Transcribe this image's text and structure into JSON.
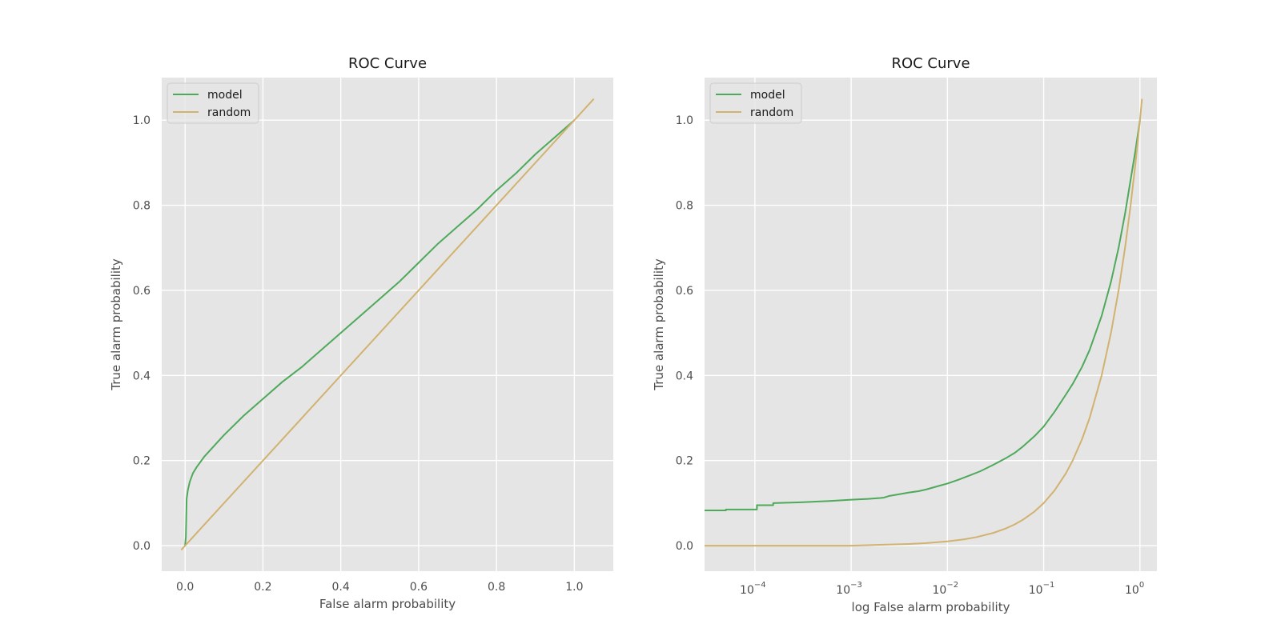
{
  "chart_data": [
    {
      "type": "line",
      "title": "ROC Curve",
      "xlabel": "False alarm probability",
      "ylabel": "True alarm probability",
      "xscale": "linear",
      "xlim": [
        -0.06,
        1.1
      ],
      "ylim": [
        -0.06,
        1.1
      ],
      "xticks": [
        0.0,
        0.2,
        0.4,
        0.6,
        0.8,
        1.0
      ],
      "xtick_labels": [
        "0.0",
        "0.2",
        "0.4",
        "0.6",
        "0.8",
        "1.0"
      ],
      "yticks": [
        0.0,
        0.2,
        0.4,
        0.6,
        0.8,
        1.0
      ],
      "ytick_labels": [
        "0.0",
        "0.2",
        "0.4",
        "0.6",
        "0.8",
        "1.0"
      ],
      "grid": true,
      "legend": "top-left",
      "series": [
        {
          "name": "model",
          "color": "#4ea95a",
          "x": [
            0.0,
            0.002,
            0.004,
            0.007,
            0.012,
            0.02,
            0.03,
            0.05,
            0.08,
            0.1,
            0.15,
            0.2,
            0.25,
            0.3,
            0.35,
            0.4,
            0.45,
            0.5,
            0.55,
            0.6,
            0.65,
            0.7,
            0.75,
            0.8,
            0.85,
            0.9,
            0.95,
            1.0
          ],
          "y": [
            0.0,
            0.02,
            0.11,
            0.13,
            0.15,
            0.17,
            0.185,
            0.21,
            0.24,
            0.26,
            0.305,
            0.345,
            0.385,
            0.42,
            0.46,
            0.5,
            0.54,
            0.58,
            0.62,
            0.665,
            0.71,
            0.75,
            0.79,
            0.835,
            0.875,
            0.92,
            0.96,
            1.0
          ]
        },
        {
          "name": "random",
          "color": "#d1b26f",
          "x": [
            -0.01,
            1.05
          ],
          "y": [
            -0.01,
            1.05
          ]
        }
      ]
    },
    {
      "type": "line",
      "title": "ROC Curve",
      "xlabel": "log False alarm probability",
      "ylabel": "True alarm probability",
      "xscale": "log",
      "xlim": [
        3e-05,
        1.5
      ],
      "ylim": [
        -0.06,
        1.1
      ],
      "xticks": [
        0.0001,
        0.001,
        0.01,
        0.1,
        1
      ],
      "xtick_labels": [
        {
          "base": "10",
          "exp": "−4"
        },
        {
          "base": "10",
          "exp": "−3"
        },
        {
          "base": "10",
          "exp": "−2"
        },
        {
          "base": "10",
          "exp": "−1"
        },
        {
          "base": "10",
          "exp": "0"
        }
      ],
      "yticks": [
        0.0,
        0.2,
        0.4,
        0.6,
        0.8,
        1.0
      ],
      "ytick_labels": [
        "0.0",
        "0.2",
        "0.4",
        "0.6",
        "0.8",
        "1.0"
      ],
      "grid": true,
      "legend": "top-left",
      "series": [
        {
          "name": "model",
          "color": "#4ea95a",
          "x": [
            3e-05,
            5e-05,
            5e-05,
            0.000105,
            0.000105,
            0.000155,
            0.000155,
            0.0003,
            0.0006,
            0.001,
            0.0015,
            0.002,
            0.0022,
            0.0025,
            0.003,
            0.004,
            0.005,
            0.006,
            0.008,
            0.01,
            0.013,
            0.017,
            0.022,
            0.03,
            0.04,
            0.05,
            0.06,
            0.08,
            0.1,
            0.13,
            0.17,
            0.2,
            0.25,
            0.3,
            0.4,
            0.5,
            0.6,
            0.7,
            0.8,
            0.9,
            1.0
          ],
          "y": [
            0.083,
            0.083,
            0.085,
            0.085,
            0.095,
            0.095,
            0.1,
            0.102,
            0.105,
            0.108,
            0.11,
            0.112,
            0.113,
            0.117,
            0.12,
            0.125,
            0.128,
            0.132,
            0.14,
            0.146,
            0.155,
            0.165,
            0.175,
            0.19,
            0.205,
            0.218,
            0.232,
            0.257,
            0.28,
            0.315,
            0.355,
            0.38,
            0.42,
            0.46,
            0.54,
            0.62,
            0.7,
            0.78,
            0.86,
            0.93,
            1.0
          ]
        },
        {
          "name": "random",
          "color": "#d1b26f",
          "x": [
            3e-05,
            0.001,
            0.002,
            0.004,
            0.006,
            0.01,
            0.015,
            0.02,
            0.03,
            0.04,
            0.05,
            0.06,
            0.08,
            0.1,
            0.13,
            0.17,
            0.2,
            0.25,
            0.3,
            0.4,
            0.5,
            0.6,
            0.7,
            0.8,
            0.9,
            1.0,
            1.05
          ],
          "y": [
            0.0,
            0.0,
            0.002,
            0.004,
            0.006,
            0.01,
            0.015,
            0.02,
            0.03,
            0.04,
            0.05,
            0.06,
            0.08,
            0.1,
            0.13,
            0.17,
            0.2,
            0.25,
            0.3,
            0.4,
            0.5,
            0.6,
            0.7,
            0.8,
            0.9,
            1.0,
            1.05
          ]
        }
      ]
    }
  ]
}
